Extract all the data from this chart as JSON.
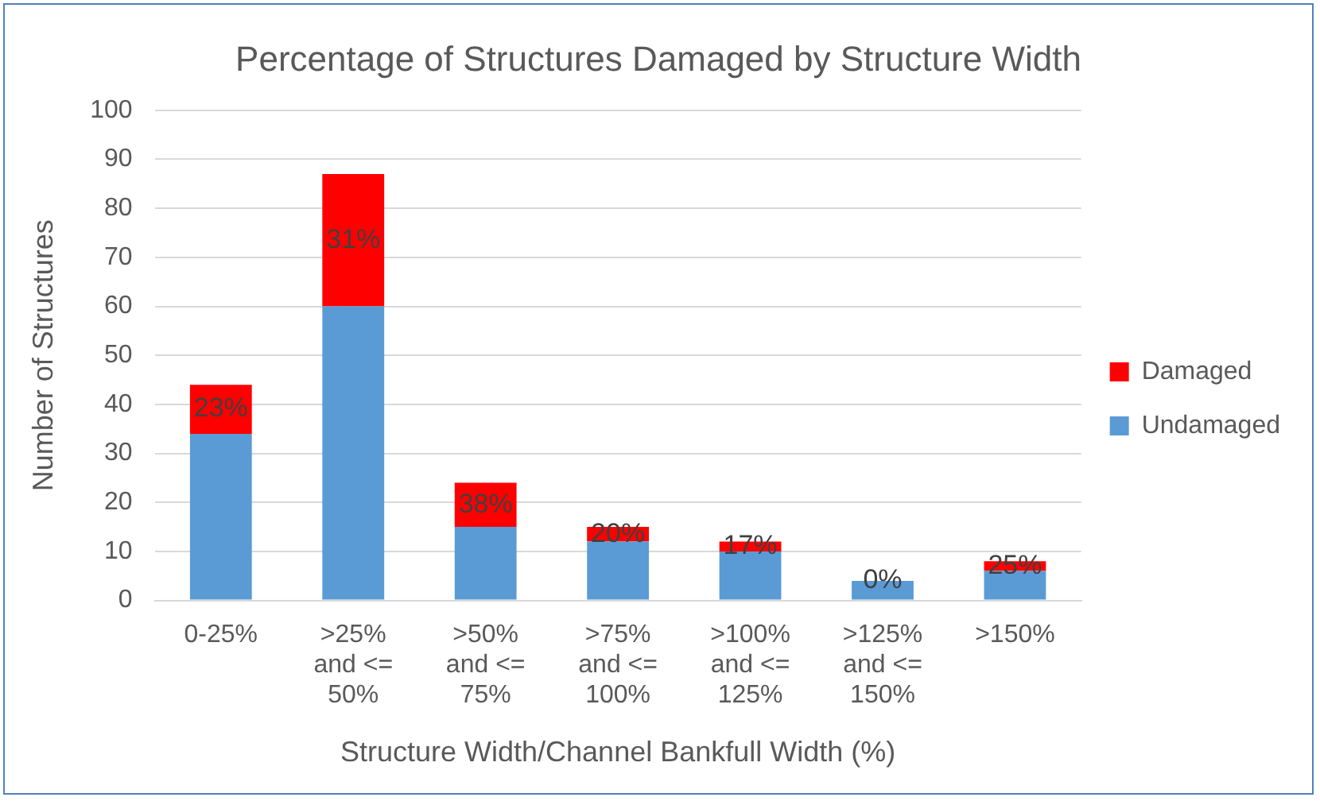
{
  "chart_data": {
    "type": "bar",
    "title": "Percentage of Structures Damaged by Structure Width",
    "xlabel": "Structure Width/Channel Bankfull Width (%)",
    "ylabel": "Number of Structures",
    "categories": [
      "0-25%",
      ">25% and <= 50%",
      ">50% and <= 75%",
      ">75% and <= 100%",
      ">100% and <= 125%",
      ">125% and <= 150%",
      ">150%"
    ],
    "stacked": true,
    "series": [
      {
        "name": "Undamaged",
        "color": "#5b9bd5",
        "values": [
          34,
          60,
          15,
          12,
          10,
          4,
          6
        ]
      },
      {
        "name": "Damaged",
        "color": "#ff0000",
        "values": [
          10,
          27,
          9,
          3,
          2,
          0,
          2
        ]
      }
    ],
    "annotations": [
      {
        "text": "23%",
        "x": "0-25%",
        "y": 44
      },
      {
        "text": "31%",
        "x": ">25% and <= 50%",
        "y": 87
      },
      {
        "text": "38%",
        "x": ">50% and <= 75%",
        "y": 24
      },
      {
        "text": "20%",
        "x": ">75% and <= 100%",
        "y": 15
      },
      {
        "text": "17%",
        "x": ">100% and <= 125%",
        "y": 12
      },
      {
        "text": "0%",
        "x": ">125% and <= 150%",
        "y": 4
      },
      {
        "text": "25%",
        "x": ">150%",
        "y": 8
      }
    ],
    "ylim": [
      0,
      100
    ],
    "yticks": [
      0,
      10,
      20,
      30,
      40,
      50,
      60,
      70,
      80,
      90,
      100
    ],
    "grid": "y",
    "legend": "right"
  }
}
